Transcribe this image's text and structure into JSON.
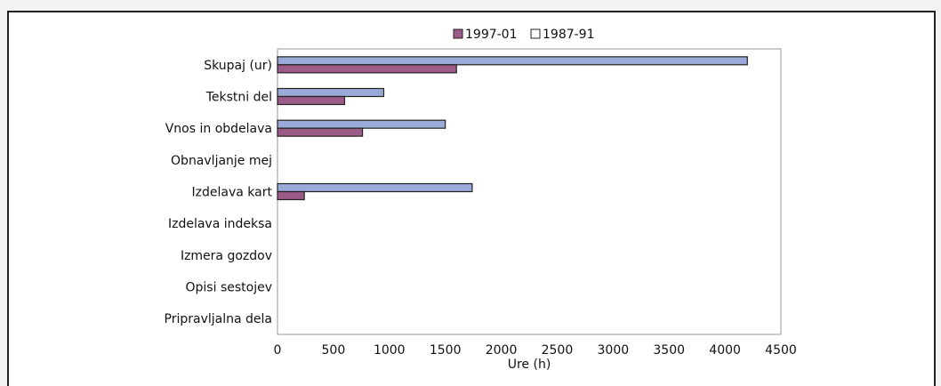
{
  "chart_data": {
    "type": "bar",
    "orientation": "horizontal",
    "xlabel": "Ure (h)",
    "xlim": [
      0,
      4500
    ],
    "xticks": [
      0,
      500,
      1000,
      1500,
      2000,
      2500,
      3000,
      3500,
      4000,
      4500
    ],
    "legend_position": "top",
    "categories": [
      "Skupaj (ur)",
      "Tekstni del",
      "Vnos in obdelava",
      "Obnavljanje mej",
      "Izdelava kart",
      "Izdelava indeksa",
      "Izmera gozdov",
      "Opisi sestojev",
      "Pripravljalna dela"
    ],
    "series": [
      {
        "name": "1997-01",
        "color": "#9c5a86",
        "values": [
          1600,
          600,
          760,
          0,
          240,
          0,
          0,
          0,
          0
        ]
      },
      {
        "name": "1987-91",
        "color": "#9aaad9",
        "values": [
          4200,
          950,
          1500,
          0,
          1740,
          0,
          0,
          0,
          0
        ]
      }
    ]
  }
}
